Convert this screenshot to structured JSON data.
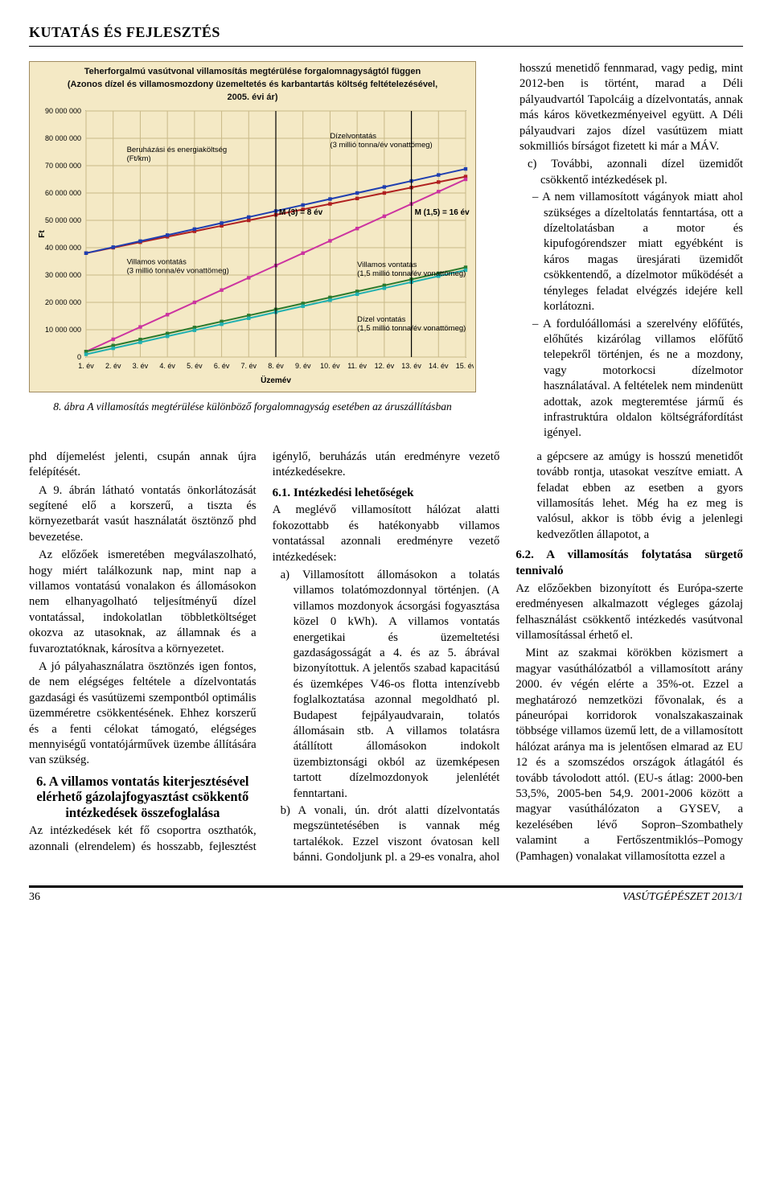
{
  "header": {
    "section": "KUTATÁS ÉS FEJLESZTÉS"
  },
  "chart": {
    "type": "line",
    "title_line1": "Teherforgalmú vasútvonal villamosítás megtérülése forgalomnagyságtól függen",
    "title_line2": "(Azonos dízel és villamosmozdony üzemeltetés és karbantartás költség feltételezésével,",
    "title_line3": "2005. évi ár)",
    "background_color": "#f4e9c5",
    "plot_bg": "#f4e9c5",
    "border_color": "#a08b60",
    "grid_color": "#c9b988",
    "axis_color": "#000000",
    "xlabel": "Üzemév",
    "ylabel": "Ft",
    "label_fontsize": 10,
    "tick_fontsize": 9,
    "x_categories": [
      "1. év",
      "2. év",
      "3. év",
      "4. év",
      "5. év",
      "6. év",
      "7. év",
      "8. év",
      "9. év",
      "10. év",
      "11. év",
      "12. év",
      "13. év",
      "14. év",
      "15. év"
    ],
    "ylim": [
      0,
      90000000
    ],
    "ytick_step": 10000000,
    "series": [
      {
        "name": "Beruházási és energiaköltség (Ft/km)",
        "color": "#b02020",
        "width": 2,
        "values": [
          38000000,
          40000000,
          42000000,
          44000000,
          46000000,
          48000000,
          50000000,
          52000000,
          54000000,
          56000000,
          58000000,
          60000000,
          62000000,
          64000000,
          66000000
        ]
      },
      {
        "name": "Villamos vontatás (3 millió tonna/év vonattömeg)",
        "color": "#1f3fb0",
        "width": 2,
        "values": [
          38000000,
          40200000,
          42400000,
          44600000,
          46800000,
          49000000,
          51200000,
          53400000,
          55600000,
          57800000,
          60000000,
          62200000,
          64400000,
          66600000,
          68800000
        ]
      },
      {
        "name": "Dízelvontatás (3 millió tonna/év vonattömeg)",
        "color": "#cc33a0",
        "width": 2,
        "values": [
          2000000,
          6500000,
          11000000,
          15500000,
          20000000,
          24500000,
          29000000,
          33500000,
          38000000,
          42500000,
          47000000,
          51500000,
          56000000,
          60500000,
          65000000
        ]
      },
      {
        "name": "Villamos vontatás (1,5 millió tonna/év vonattömeg)",
        "color": "#2d7a2d",
        "width": 2,
        "values": [
          2000000,
          4200000,
          6400000,
          8600000,
          10800000,
          13000000,
          15200000,
          17400000,
          19600000,
          21800000,
          24000000,
          26200000,
          28400000,
          30600000,
          32800000
        ]
      },
      {
        "name": "Dízel vontatás (1,5 millió tonna/év vonattömeg)",
        "color": "#20b0b0",
        "width": 2,
        "values": [
          1000000,
          3200000,
          5400000,
          7600000,
          9800000,
          12000000,
          14200000,
          16400000,
          18600000,
          20800000,
          23000000,
          25200000,
          27400000,
          29600000,
          31800000
        ]
      }
    ],
    "annotations": [
      {
        "text": "M (3) = 8 év",
        "x_index": 7,
        "y": 52000000
      },
      {
        "text": "M (1,5) = 16 év",
        "x_index": 12,
        "y": 52000000
      }
    ],
    "inline_labels": [
      {
        "text": "Beruházási és energiaköltség\n(Ft/km)",
        "x_index": 1.5,
        "y": 75000000
      },
      {
        "text": "Dízelvontatás\n(3 millió tonna/év vonattömeg)",
        "x_index": 9,
        "y": 80000000
      },
      {
        "text": "Villamos vontatás\n(3 millió tonna/év vonattömeg)",
        "x_index": 1.5,
        "y": 34000000
      },
      {
        "text": "Villamos vontatás\n(1,5 millió tonna/év vonattömeg)",
        "x_index": 10,
        "y": 33000000
      },
      {
        "text": "Dízel vontatás\n(1,5 millió tonna/év vonattömeg)",
        "x_index": 10,
        "y": 13000000
      }
    ]
  },
  "caption": "8. ábra A villamosítás megtérülése különböző forgalomnagyság esetében az áruszállításban",
  "col3top": {
    "p1": "hosszú menetidő fennmarad, vagy pedig, mint 2012-ben is történt, marad a Déli pályaudvartól Tapolcáig a dízelvontatás, annak más káros következményeivel együtt. A Déli pályaudvari zajos dízel vasútüzem miatt sokmilliós bírságot fizetett ki már a MÁV.",
    "c_label": "c)",
    "c_text": "További, azonnali dízel üzemidőt csökkentő intézkedések pl.",
    "d1": "A nem villamosított vágányok miatt ahol szükséges a dízeltolatás fenntartása, ott a dízeltolatásban a motor és kipufogórendszer miatt egyébként is káros magas üresjárati üzemidőt csökkentendő, a dízelmotor működését a tényleges feladat elvégzés idejére kell korlátozni.",
    "d2": "A fordulóállomási a szerelvény előfűtés, előhűtés kizárólag villamos előfűtő telepekről történjen, és ne a mozdony, vagy motorkocsi dízelmotor használatával. A feltételek nem mindenütt adottak, azok megteremtése jármű és infrastruktúra oldalon költségráfordítást igényel."
  },
  "body": {
    "p1": "phd díjemelést jelenti, csupán annak újra felépítését.",
    "p2": "A 9. ábrán látható vontatás önkorlátozását segítené elő a korszerű, a tiszta és környezetbarát vasút használatát ösztönző phd bevezetése.",
    "p3": "Az előzőek ismeretében megválaszolható, hogy miért találkozunk nap, mint nap a villamos vontatású vonalakon és állomásokon nem elhanyagolható teljesítményű dízel vontatással, indokolatlan többletköltséget okozva az utasoknak, az államnak és a fuvaroztatóknak, károsítva a környezetet.",
    "p4": "A jó pályahasználatra ösztönzés igen fontos, de nem elégséges feltétele a dízelvontatás gazdasági és vasútüzemi szempontból optimális üzemméretre csökkentésének. Ehhez korszerű és a fenti célokat támogató, elégséges mennyiségű vontatójárművek üzembe állítására van szükség.",
    "h6": "6. A villamos vontatás kiterjesztésével elérhető gázolajfogyasztást csökkentő intézkedések összefoglalása",
    "p5": "Az intézkedések két fő csoportra oszthatók, azonnali (elrendelem) és hosszabb, fejlesztést igénylő, beruházás után eredményre vezető intézkedésekre.",
    "h61": "6.1. Intézkedési lehetőségek",
    "p6": "A meglévő villamosított hálózat alatti fokozottabb és hatékonyabb villamos vontatással azonnali eredményre vezető intézkedések:",
    "a_label": "a)",
    "a_text": "Villamosított állomásokon a tolatás villamos tolatómozdonnyal történjen. (A villamos mozdonyok ácsorgási fogyasztása közel 0 kWh). A villamos vontatás energetikai és üzemeltetési gazdaságosságát a 4. és az 5. ábrával bizonyítottuk. A jelentős szabad kapacitású és üzemképes V46-os flotta intenzívebb foglalkoztatása azonnal megoldható pl. Budapest fejpályaudvarain, tolatós állomásain stb. A villamos tolatásra átállított állomásokon indokolt üzembiztonsági okból az üzemképesen tartott dízelmozdonyok jelenlétét fenntartani.",
    "b_label": "b)",
    "b_text": "A vonali, ún. drót alatti dízelvontatás megszüntetésében is vannak még tartalékok. Ezzel viszont óvatosan kell bánni. Gondoljunk pl. a 29-es vonalra, ahol a gépcsere az amúgy is hosszú menetidőt tovább rontja, utasokat veszítve emiatt. A feladat ebben az esetben a gyors villamosítás lehet. Még ha ez meg is valósul, akkor is több évig a jelenlegi kedvezőtlen állapotot, a",
    "h62": "6.2. A villamosítás folytatása sürgető tennivaló",
    "p7": "Az előzőekben bizonyított és Európa-szerte eredményesen alkalmazott végleges gázolaj felhasználást csökkentő intézkedés vasútvonal villamosítással érhető el.",
    "p8": "Mint az szakmai körökben közismert a magyar vasúthálózatból a villamosított arány 2000. év végén elérte a 35%-ot. Ezzel a meghatározó nemzetközi fővonalak, és a páneurópai korridorok vonalszakaszainak többsége villamos üzemű lett, de a villamosított hálózat aránya ma is jelentősen elmarad az EU 12 és a szomszédos országok átlagától és tovább távolodott attól. (EU-s átlag: 2000-ben 53,5%, 2005-ben 54,9. 2001-2006 között a magyar vasúthálózaton a GYSEV, a kezelésében lévő Sopron–Szombathely valamint a Fertőszentmiklós–Pomogy (Pamhagen) vonalakat villamosította ezzel a"
  },
  "footer": {
    "page": "36",
    "pub": "VASÚTGÉPÉSZET 2013/1"
  }
}
